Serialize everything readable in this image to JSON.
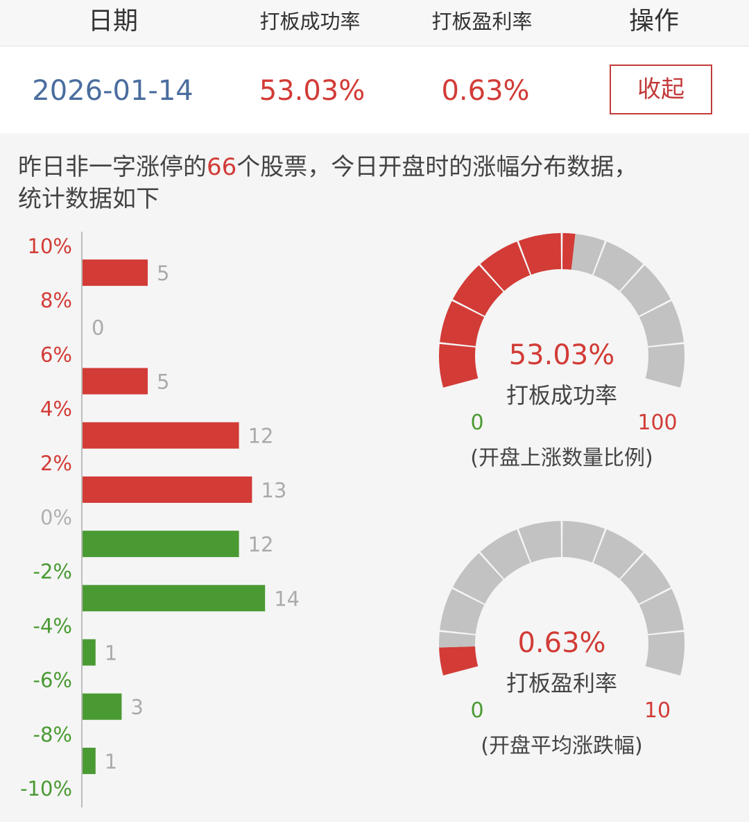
{
  "header": {
    "date_label": "日期",
    "success_rate_label": "打板成功率",
    "profit_rate_label": "打板盈利率",
    "action_label": "操作"
  },
  "row": {
    "date": "2026-01-14",
    "success_rate": "53.03%",
    "profit_rate": "0.63%",
    "collapse_label": "收起"
  },
  "description": {
    "prefix": "昨日非一字涨停的",
    "count": "66",
    "suffix": "个股票，今日开盘时的涨幅分布数据，",
    "line2": "统计数据如下"
  },
  "colors": {
    "red": "#d23b36",
    "green": "#4a9a33",
    "gray": "#c2c2c2",
    "date_blue": "#4a6d9e"
  },
  "chart_data": [
    {
      "type": "bar",
      "orientation": "horizontal",
      "y_tick_labels": [
        "10%",
        "8%",
        "6%",
        "4%",
        "2%",
        "0%",
        "-2%",
        "-4%",
        "-6%",
        "-8%",
        "-10%"
      ],
      "bins": [
        "8%~10%",
        "6%~8%",
        "4%~6%",
        "2%~4%",
        "0%~2%",
        "-2%~0%",
        "-4%~-2%",
        "-6%~-4%",
        "-8%~-6%",
        "-10%~-8%"
      ],
      "values": [
        5,
        0,
        5,
        12,
        13,
        12,
        14,
        1,
        3,
        1
      ],
      "bar_colors": [
        "red",
        "red",
        "red",
        "red",
        "red",
        "green",
        "green",
        "green",
        "green",
        "green"
      ]
    },
    {
      "type": "gauge",
      "value": 53.03,
      "value_label": "53.03%",
      "label": "打板成功率",
      "min_label": "0",
      "max_label": "100",
      "min": 0,
      "max": 100,
      "caption": "(开盘上涨数量比例)"
    },
    {
      "type": "gauge",
      "value": 0.63,
      "value_label": "0.63%",
      "label": "打板盈利率",
      "min_label": "0",
      "max_label": "10",
      "min": 0,
      "max": 10,
      "caption": "(开盘平均涨跌幅)"
    }
  ]
}
